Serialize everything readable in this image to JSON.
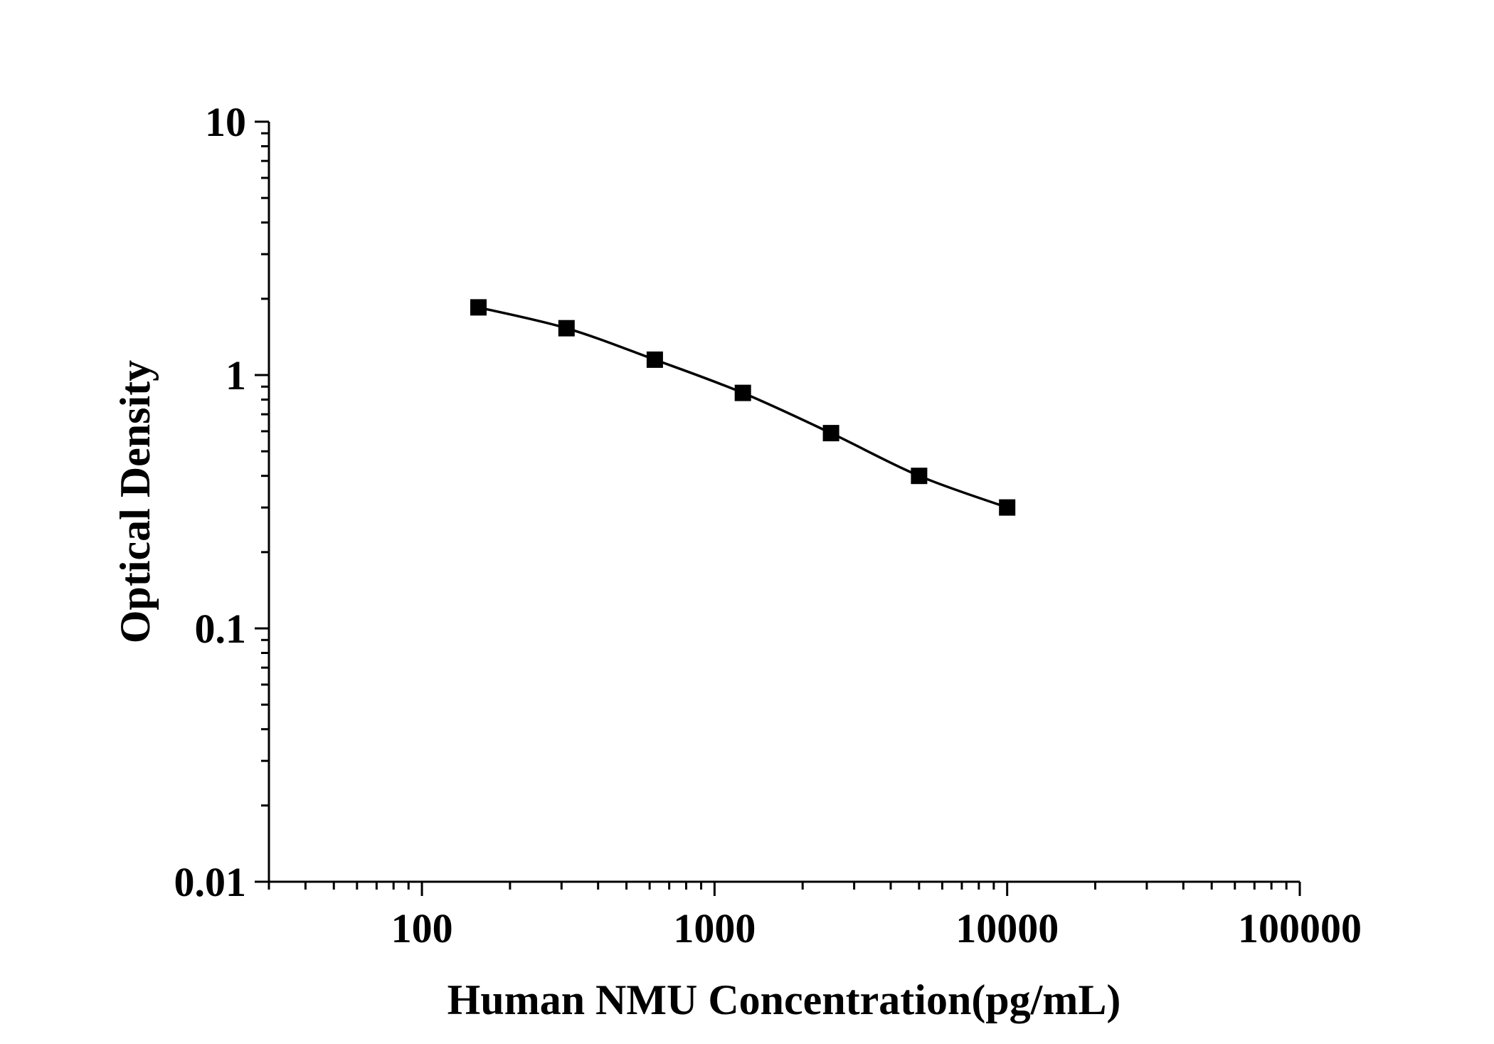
{
  "chart_data": {
    "type": "line",
    "xlabel": "Human NMU Concentration(pg/mL)",
    "ylabel": "Optical Density",
    "xscale": "log",
    "yscale": "log",
    "xlim": [
      30,
      100000
    ],
    "ylim": [
      0.01,
      10
    ],
    "x_tick_labels": [
      "100",
      "1000",
      "10000",
      "100000"
    ],
    "y_tick_labels": [
      "0.01",
      "0.1",
      "1",
      "10"
    ],
    "grid": false,
    "marker": "square",
    "color": "#000000",
    "series": [
      {
        "x": [
          156,
          312,
          625,
          1250,
          2500,
          5000,
          10000
        ],
        "y": [
          1.85,
          1.53,
          1.15,
          0.85,
          0.59,
          0.4,
          0.3
        ]
      }
    ]
  }
}
